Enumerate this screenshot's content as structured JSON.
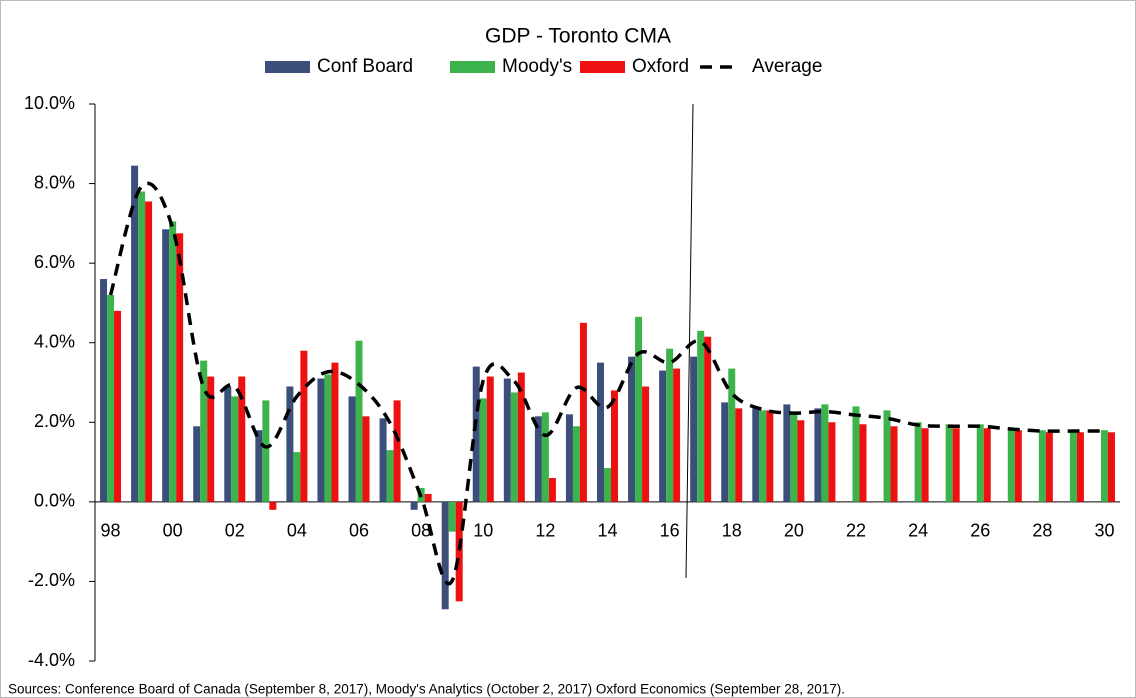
{
  "chart_data": {
    "type": "bar",
    "title": "GDP - Toronto CMA",
    "source": "Sources: Conference Board of Canada (September 8, 2017), Moody's Analytics (October 2, 2017) Oxford Economics (September 28, 2017).",
    "categories": [
      "98",
      null,
      "00",
      null,
      "02",
      null,
      "04",
      null,
      "06",
      null,
      "08",
      null,
      "10",
      null,
      "12",
      null,
      "14",
      null,
      "16",
      null,
      "18",
      null,
      "20",
      null,
      "22",
      null,
      "24",
      null,
      "26",
      null,
      "28",
      null,
      "30"
    ],
    "series": [
      {
        "name": "Conf Board",
        "color": "#3b4f7a",
        "values": [
          5.6,
          8.45,
          6.85,
          1.9,
          2.9,
          1.8,
          2.9,
          3.1,
          2.65,
          2.1,
          -0.2,
          -2.7,
          3.4,
          3.1,
          2.15,
          2.2,
          3.5,
          3.65,
          3.3,
          3.65,
          2.5,
          2.35,
          2.45,
          2.35,
          null,
          null,
          null,
          null,
          null,
          null,
          null,
          null,
          null
        ]
      },
      {
        "name": "Moody's",
        "color": "#3cb44b",
        "values": [
          5.2,
          7.8,
          7.05,
          3.55,
          2.65,
          2.55,
          1.25,
          3.2,
          4.05,
          1.3,
          0.35,
          -0.75,
          2.6,
          2.75,
          2.25,
          1.9,
          0.85,
          4.65,
          3.85,
          4.3,
          3.35,
          2.3,
          2.2,
          2.45,
          2.4,
          2.3,
          2.0,
          1.95,
          1.95,
          1.85,
          1.8,
          1.8,
          1.8
        ]
      },
      {
        "name": "Oxford",
        "color": "#ee1111",
        "values": [
          4.8,
          7.55,
          6.75,
          3.15,
          3.15,
          -0.2,
          3.8,
          3.5,
          2.15,
          2.55,
          0.2,
          -2.5,
          3.15,
          3.25,
          0.6,
          4.5,
          2.8,
          2.9,
          3.35,
          4.15,
          2.35,
          2.3,
          2.05,
          2.0,
          1.95,
          1.9,
          1.85,
          1.85,
          1.85,
          1.8,
          1.75,
          1.75,
          1.75
        ]
      },
      {
        "name": "Average",
        "type": "line",
        "color": "#000000",
        "values": [
          5.2,
          7.93,
          6.88,
          2.87,
          2.9,
          1.38,
          2.65,
          3.27,
          2.95,
          1.98,
          0.12,
          -1.98,
          3.05,
          3.03,
          1.67,
          2.87,
          2.38,
          3.73,
          3.5,
          4.03,
          2.73,
          2.32,
          2.23,
          2.27,
          2.18,
          2.1,
          1.93,
          1.9,
          1.9,
          1.83,
          1.78,
          1.78,
          1.78
        ]
      }
    ],
    "ylim": [
      -4,
      10
    ],
    "yticks": [
      {
        "value": -4,
        "label": "-4.0%"
      },
      {
        "value": -2,
        "label": "-2.0%"
      },
      {
        "value": 0,
        "label": "0.0%"
      },
      {
        "value": 2,
        "label": "2.0%"
      },
      {
        "value": 4,
        "label": "4.0%"
      },
      {
        "value": 6,
        "label": "6.0%"
      },
      {
        "value": 8,
        "label": "8.0%"
      },
      {
        "value": 10,
        "label": "10.0%"
      }
    ],
    "legend": "top"
  }
}
